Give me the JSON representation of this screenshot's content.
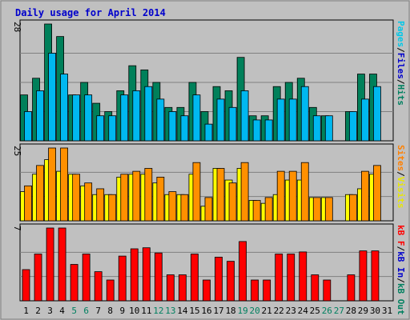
{
  "chart_data": {
    "type": "bar",
    "title": "Daily usage for April 2014",
    "categories": [
      "1",
      "2",
      "3",
      "4",
      "5",
      "6",
      "7",
      "8",
      "9",
      "10",
      "11",
      "12",
      "13",
      "14",
      "15",
      "16",
      "17",
      "18",
      "19",
      "20",
      "21",
      "22",
      "23",
      "24",
      "25",
      "26",
      "27",
      "28",
      "29",
      "30",
      "31"
    ],
    "weekend_days": [
      "5",
      "6",
      "12",
      "13",
      "19",
      "20",
      "26",
      "27"
    ],
    "panels": [
      {
        "id": "hits-files-pages",
        "ymax_label": "28",
        "ymax": 28,
        "axis_label": {
          "parts": [
            {
              "text": "Pages",
              "color": "#00c8e8"
            },
            {
              "text": "/",
              "color": "#000000"
            },
            {
              "text": "Files",
              "color": "#0000cc"
            },
            {
              "text": "/",
              "color": "#000000"
            },
            {
              "text": "Hits",
              "color": "#008060"
            }
          ]
        },
        "series": [
          {
            "name": "Hits",
            "color": "#00805a",
            "values": [
              11,
              15,
              28,
              25,
              11,
              14,
              9,
              7,
              12,
              18,
              17,
              14,
              8,
              8,
              14,
              7,
              13,
              12,
              20,
              6,
              6,
              13,
              14,
              15,
              8,
              6,
              0,
              7,
              16,
              16,
              0
            ]
          },
          {
            "name": "Pages",
            "color": "#00b8f0",
            "values": [
              7,
              12,
              21,
              16,
              11,
              11,
              6,
              6,
              11,
              12,
              13,
              10,
              7,
              6,
              11,
              4,
              10,
              8,
              12,
              5,
              5,
              10,
              10,
              13,
              6,
              6,
              0,
              7,
              10,
              13,
              0
            ]
          }
        ]
      },
      {
        "id": "visits-sites",
        "ymax_label": "25",
        "ymax": 25,
        "axis_label": {
          "parts": [
            {
              "text": "Sites",
              "color": "#ff8000"
            },
            {
              "text": "/",
              "color": "#000000"
            },
            {
              "text": "Visits",
              "color": "#e8e800"
            }
          ]
        },
        "series": [
          {
            "name": "Visits",
            "color": "#ffff00",
            "values": [
              10,
              16,
              21,
              17,
              16,
              12,
              9,
              9,
              15,
              16,
              16,
              13,
              9,
              9,
              16,
              5,
              18,
              14,
              18,
              7,
              6,
              9,
              14,
              14,
              8,
              8,
              0,
              9,
              11,
              16,
              0
            ]
          },
          {
            "name": "Sites",
            "color": "#ff9000",
            "values": [
              12,
              19,
              25,
              25,
              16,
              13,
              11,
              9,
              16,
              17,
              18,
              15,
              10,
              9,
              20,
              8,
              18,
              13,
              20,
              7,
              8,
              17,
              17,
              20,
              8,
              8,
              0,
              9,
              17,
              19,
              0
            ]
          }
        ]
      },
      {
        "id": "kbytes",
        "ymax_label": "7",
        "ymax": 7,
        "axis_label": {
          "parts": [
            {
              "text": "kB F",
              "color": "#ff0000"
            },
            {
              "text": "/",
              "color": "#000000"
            },
            {
              "text": "kB In",
              "color": "#0000cc"
            },
            {
              "text": "/",
              "color": "#000000"
            },
            {
              "text": "kB Out",
              "color": "#008060"
            }
          ]
        },
        "series": [
          {
            "name": "kB F",
            "color": "#ff0000",
            "values": [
              3,
              4.5,
              7,
              7,
              3.5,
              4.5,
              2.8,
              2,
              4.3,
              5,
              5.1,
              4.6,
              2.5,
              2.5,
              4.5,
              2,
              4.2,
              3.8,
              5.7,
              2,
              2,
              4.5,
              4.5,
              4.7,
              2.5,
              2,
              0,
              2.5,
              4.8,
              4.8,
              0
            ]
          }
        ]
      }
    ]
  }
}
